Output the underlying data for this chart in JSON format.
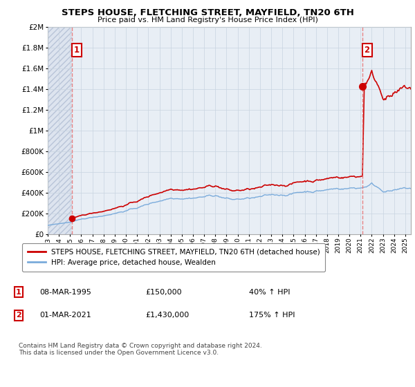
{
  "title": "STEPS HOUSE, FLETCHING STREET, MAYFIELD, TN20 6TH",
  "subtitle": "Price paid vs. HM Land Registry's House Price Index (HPI)",
  "hpi_label": "HPI: Average price, detached house, Wealden",
  "property_label": "STEPS HOUSE, FLETCHING STREET, MAYFIELD, TN20 6TH (detached house)",
  "transaction1_date": "08-MAR-1995",
  "transaction1_price": 150000,
  "transaction1_hpi": "40% ↑ HPI",
  "transaction2_date": "01-MAR-2021",
  "transaction2_price": 1430000,
  "transaction2_hpi": "175% ↑ HPI",
  "footer": "Contains HM Land Registry data © Crown copyright and database right 2024.\nThis data is licensed under the Open Government Licence v3.0.",
  "ylim_max": 2000000,
  "xlim_min": 1993.0,
  "xlim_max": 2025.5,
  "t1_year": 1995.17,
  "t2_year": 2021.17,
  "property_color": "#cc0000",
  "hpi_color": "#7aabdb",
  "hatch_color": "#d0d0e8",
  "grid_color": "#c8d4e0",
  "transaction_line_color": "#e87070",
  "bg_color": "#e8eef5"
}
